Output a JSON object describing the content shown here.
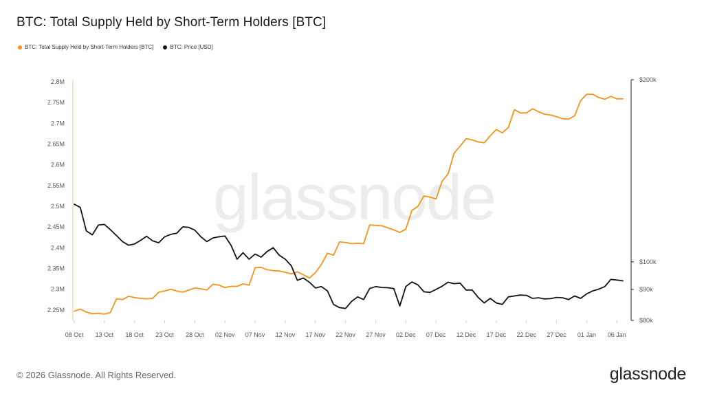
{
  "title": "BTC: Total Supply Held by Short-Term Holders [BTC]",
  "legend": [
    {
      "label": "BTC: Total Supply Held by Short-Term Holders [BTC]",
      "color": "#f7931a"
    },
    {
      "label": "BTC: Price [USD]",
      "color": "#111111"
    }
  ],
  "watermark": "glassnode",
  "footer": {
    "copyright": "© 2026 Glassnode. All Rights Reserved.",
    "logo": "glassnode"
  },
  "chart_data": {
    "type": "line",
    "x": [
      "2025-10-08",
      "2025-10-09",
      "2025-10-10",
      "2025-10-11",
      "2025-10-12",
      "2025-10-13",
      "2025-10-14",
      "2025-10-15",
      "2025-10-16",
      "2025-10-17",
      "2025-10-18",
      "2025-10-19",
      "2025-10-20",
      "2025-10-21",
      "2025-10-22",
      "2025-10-23",
      "2025-10-24",
      "2025-10-25",
      "2025-10-26",
      "2025-10-27",
      "2025-10-28",
      "2025-10-29",
      "2025-10-30",
      "2025-10-31",
      "2025-11-01",
      "2025-11-02",
      "2025-11-03",
      "2025-11-04",
      "2025-11-05",
      "2025-11-06",
      "2025-11-07",
      "2025-11-08",
      "2025-11-09",
      "2025-11-10",
      "2025-11-11",
      "2025-11-12",
      "2025-11-13",
      "2025-11-14",
      "2025-11-15",
      "2025-11-16",
      "2025-11-17",
      "2025-11-18",
      "2025-11-19",
      "2025-11-20",
      "2025-11-21",
      "2025-11-22",
      "2025-11-23",
      "2025-11-24",
      "2025-11-25",
      "2025-11-26",
      "2025-11-27",
      "2025-11-28",
      "2025-11-29",
      "2025-11-30",
      "2025-12-01",
      "2025-12-02",
      "2025-12-03",
      "2025-12-04",
      "2025-12-05",
      "2025-12-06",
      "2025-12-07",
      "2025-12-08",
      "2025-12-09",
      "2025-12-10",
      "2025-12-11",
      "2025-12-12",
      "2025-12-13",
      "2025-12-14",
      "2025-12-15",
      "2025-12-16",
      "2025-12-17",
      "2025-12-18",
      "2025-12-19",
      "2025-12-20",
      "2025-12-21",
      "2025-12-22",
      "2025-12-23",
      "2025-12-24",
      "2025-12-25",
      "2025-12-26",
      "2025-12-27",
      "2025-12-28",
      "2025-12-29",
      "2025-12-30",
      "2025-12-31",
      "2026-01-01",
      "2026-01-02",
      "2026-01-03",
      "2026-01-04",
      "2026-01-05",
      "2026-01-06",
      "2026-01-07"
    ],
    "series": [
      {
        "name": "BTC: Total Supply Held by Short-Term Holders [BTC]",
        "color": "#f7931a",
        "axis": "left",
        "values": [
          2247000,
          2252000,
          2245000,
          2241000,
          2242000,
          2240000,
          2244000,
          2277000,
          2275000,
          2283000,
          2280000,
          2278000,
          2277000,
          2278000,
          2293000,
          2296000,
          2300000,
          2296000,
          2293000,
          2298000,
          2303000,
          2301000,
          2298000,
          2312000,
          2310000,
          2304000,
          2307000,
          2307000,
          2313000,
          2310000,
          2352000,
          2353000,
          2347000,
          2345000,
          2344000,
          2341000,
          2337000,
          2342000,
          2335000,
          2327000,
          2340000,
          2360000,
          2387000,
          2382000,
          2414000,
          2413000,
          2410000,
          2411000,
          2410000,
          2455000,
          2454000,
          2453000,
          2448000,
          2443000,
          2437000,
          2445000,
          2490000,
          2500000,
          2525000,
          2522000,
          2518000,
          2560000,
          2578000,
          2628000,
          2645000,
          2663000,
          2660000,
          2655000,
          2653000,
          2670000,
          2685000,
          2677000,
          2690000,
          2733000,
          2725000,
          2725000,
          2735000,
          2728000,
          2722000,
          2720000,
          2716000,
          2711000,
          2710000,
          2718000,
          2755000,
          2770000,
          2770000,
          2762000,
          2758000,
          2765000,
          2759000,
          2759000
        ]
      },
      {
        "name": "BTC: Price [USD]",
        "color": "#111111",
        "axis": "right",
        "values": [
          124500,
          123000,
          112500,
          110800,
          115000,
          115300,
          113000,
          110500,
          108000,
          106500,
          107000,
          108500,
          110200,
          108300,
          107500,
          110000,
          111000,
          111500,
          114200,
          114000,
          112800,
          110000,
          108000,
          109500,
          110000,
          110300,
          106500,
          101000,
          103500,
          101000,
          103000,
          101800,
          104000,
          105500,
          102500,
          101000,
          98500,
          93200,
          94000,
          92500,
          90500,
          91000,
          89500,
          85000,
          84000,
          83700,
          86000,
          87500,
          86600,
          90300,
          91000,
          90700,
          90600,
          90300,
          84500,
          91000,
          92600,
          91600,
          89200,
          89000,
          90000,
          91100,
          92500,
          92000,
          92200,
          89800,
          89800,
          87300,
          85500,
          87000,
          85500,
          85000,
          87500,
          87800,
          88100,
          88000,
          87000,
          87200,
          86800,
          86900,
          87300,
          87200,
          86600,
          87800,
          87000,
          88500,
          89500,
          90100,
          91000,
          93500,
          93300,
          93000
        ]
      }
    ],
    "x_tick_labels": [
      "08 Oct",
      "13 Oct",
      "18 Oct",
      "23 Oct",
      "28 Oct",
      "02 Nov",
      "07 Nov",
      "12 Nov",
      "17 Nov",
      "22 Nov",
      "27 Nov",
      "02 Dec",
      "07 Dec",
      "12 Dec",
      "17 Dec",
      "22 Dec",
      "27 Dec",
      "01 Jan",
      "06 Jan"
    ],
    "x_tick_indices": [
      0,
      5,
      10,
      15,
      20,
      25,
      30,
      35,
      40,
      45,
      50,
      55,
      60,
      65,
      70,
      75,
      80,
      85,
      90
    ],
    "left_axis": {
      "ticks": [
        2250000,
        2300000,
        2350000,
        2400000,
        2450000,
        2500000,
        2550000,
        2600000,
        2650000,
        2700000,
        2750000,
        2800000
      ],
      "tick_labels": [
        "2.25M",
        "2.3M",
        "2.35M",
        "2.4M",
        "2.45M",
        "2.5M",
        "2.55M",
        "2.6M",
        "2.65M",
        "2.7M",
        "2.75M",
        "2.8M"
      ],
      "ylim": [
        2225000,
        2805000
      ],
      "scale": "linear"
    },
    "right_axis": {
      "ticks": [
        80000,
        90000,
        100000,
        200000
      ],
      "tick_labels": [
        "$80k",
        "$90k",
        "$100k",
        "$200k"
      ],
      "ylim": [
        80000,
        200000
      ],
      "scale": "log"
    },
    "grid": false,
    "legend_position": "top-left"
  }
}
